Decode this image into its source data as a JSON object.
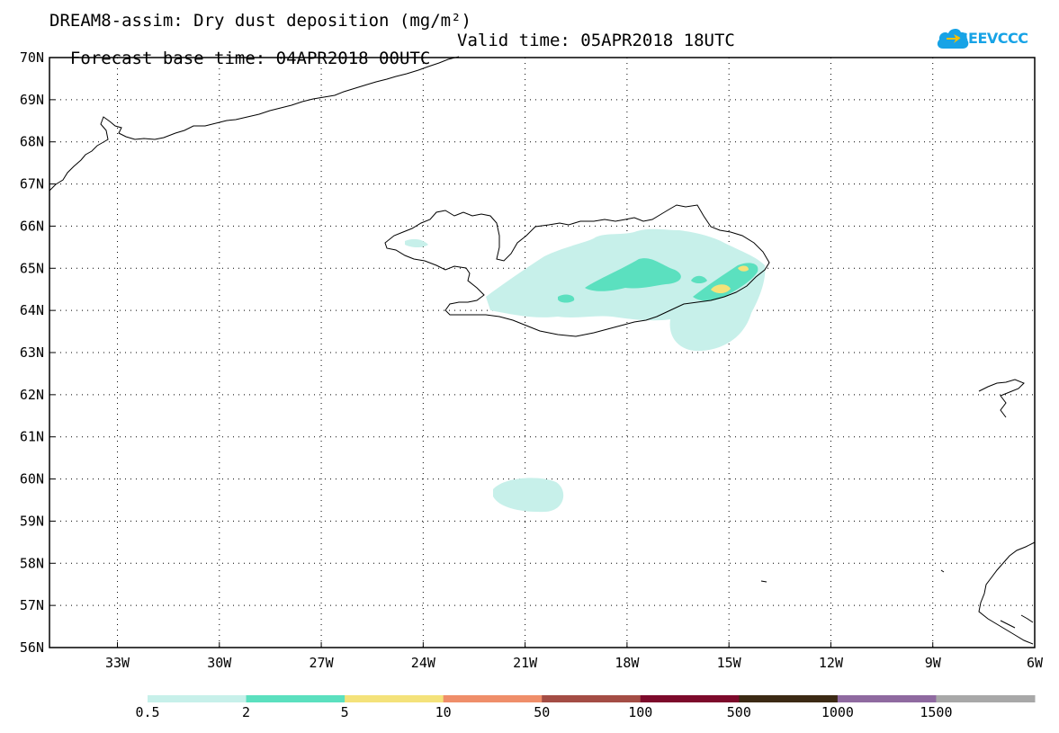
{
  "title_line1": "DREAM8-assim: Dry dust deposition (mg/m²)",
  "forecast_base": "Forecast base time: 04APR2018 00UTC",
  "valid_time": "Valid time: 05APR2018 18UTC",
  "logo_text": "SEEVCCC",
  "logo_icon": "cloud-logo-icon",
  "chart_data": {
    "type": "map",
    "lon_range": [
      -35,
      -6
    ],
    "lat_range": [
      56,
      70
    ],
    "lat_ticks": [
      "70N",
      "69N",
      "68N",
      "67N",
      "66N",
      "65N",
      "64N",
      "63N",
      "62N",
      "61N",
      "60N",
      "59N",
      "58N",
      "57N",
      "56N"
    ],
    "lon_ticks": [
      "33W",
      "30W",
      "27W",
      "24W",
      "21W",
      "18W",
      "15W",
      "12W",
      "9W",
      "6W"
    ],
    "grid": "dotted",
    "legend": {
      "placement": "bottom",
      "colors": [
        "#c7f0ea",
        "#5be0bf",
        "#f4e27a",
        "#ef8e6a",
        "#a44d45",
        "#7d0a2b",
        "#3c2a14",
        "#8f6aa0",
        "#a8a8a8"
      ],
      "labels": [
        "0.5",
        "2",
        "5",
        "10",
        "50",
        "100",
        "500",
        "1000",
        "1500"
      ]
    }
  }
}
